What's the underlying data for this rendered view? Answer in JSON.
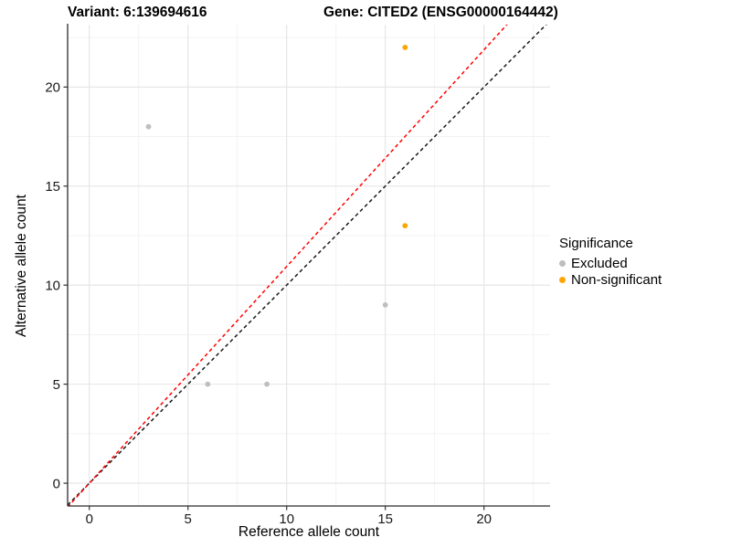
{
  "header": {
    "variant_title": "Variant: 6:139694616",
    "gene_title": "Gene: CITED2 (ENSG00000164442)"
  },
  "chart_data": {
    "type": "scatter",
    "xlabel": "Reference allele count",
    "ylabel": "Alternative allele count",
    "xlim": [
      -1.1,
      23.35
    ],
    "ylim": [
      -1.15,
      23.15
    ],
    "x_ticks": [
      0,
      5,
      10,
      15,
      20
    ],
    "y_ticks": [
      0,
      5,
      10,
      15,
      20
    ],
    "x_minor_ticks": [
      2.5,
      7.5,
      12.5,
      17.5,
      22.5
    ],
    "y_minor_ticks": [
      2.5,
      7.5,
      12.5,
      17.5,
      22.5
    ],
    "grid": "major+minor",
    "legend_position": "right",
    "series": [
      {
        "name": "Excluded",
        "color": "#BEBEBE",
        "points": [
          {
            "x": 3,
            "y": 18
          },
          {
            "x": 6,
            "y": 5
          },
          {
            "x": 9,
            "y": 5
          },
          {
            "x": 15,
            "y": 9
          }
        ]
      },
      {
        "name": "Non-significant",
        "color": "#FFA500",
        "points": [
          {
            "x": 16,
            "y": 13
          },
          {
            "x": 16,
            "y": 22
          }
        ]
      }
    ],
    "reference_lines": [
      {
        "name": "identity-line",
        "slope": 1.0,
        "intercept": 0,
        "color": "#1A1A1A",
        "style": "dashed"
      },
      {
        "name": "allelic-ratio-line",
        "slope": 1.094,
        "intercept": 0,
        "color": "#FF0000",
        "style": "dashed"
      }
    ],
    "legend": {
      "title": "Significance",
      "items": [
        {
          "label": "Excluded",
          "color": "#BEBEBE"
        },
        {
          "label": "Non-significant",
          "color": "#FFA500"
        }
      ]
    }
  },
  "style_colors": {
    "major_grid": "#E4E4E4",
    "minor_grid": "#F1F1F1",
    "axis_line": "#2B2B2B",
    "tick_mark": "#333333",
    "tick_label": "#1A1A1A"
  }
}
